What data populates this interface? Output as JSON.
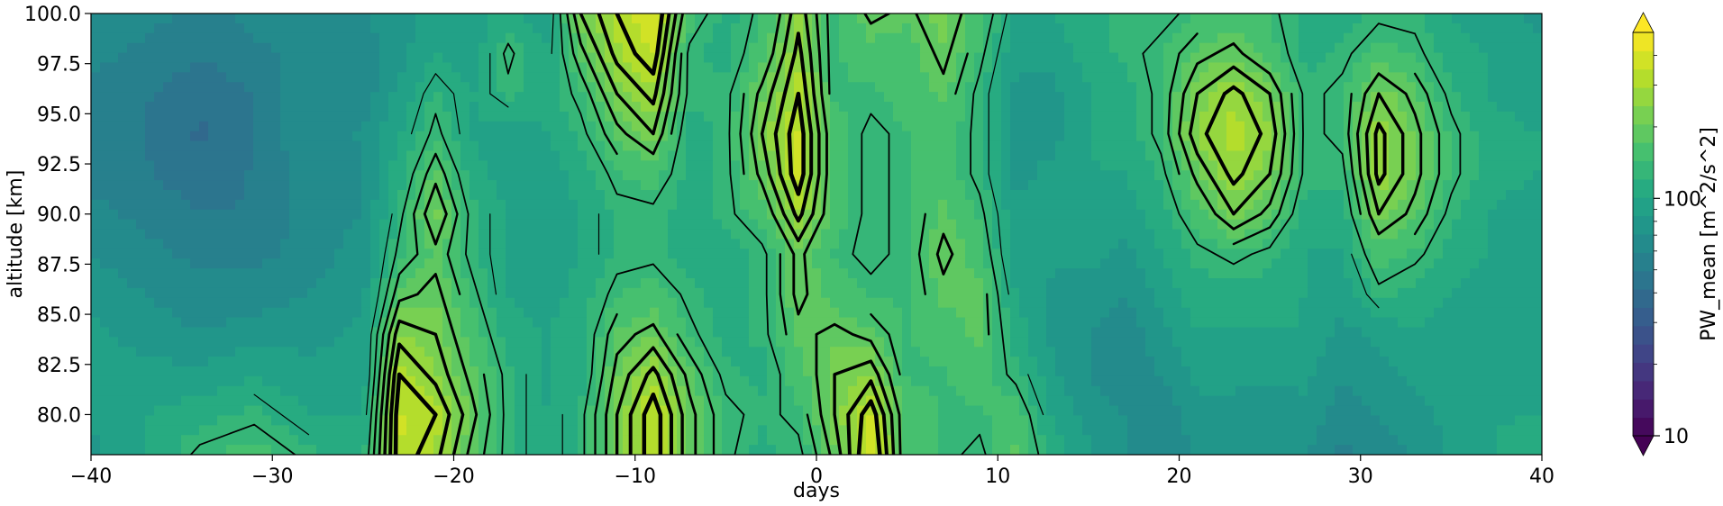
{
  "chart_data": {
    "type": "heatmap",
    "subtype": "filled-contour",
    "title": "",
    "xlabel": "days",
    "ylabel": "altitude [km]",
    "xlim": [
      -40,
      40
    ],
    "ylim": [
      78,
      100
    ],
    "x_ticks": [
      "-40",
      "-30",
      "-20",
      "-10",
      "0",
      "10",
      "20",
      "30",
      "40"
    ],
    "y_ticks": [
      "80.0",
      "82.5",
      "85.0",
      "87.5",
      "90.0",
      "92.5",
      "95.0",
      "97.5",
      "100.0"
    ],
    "colorbar": {
      "label": "PW_mean [m^2/s^2]",
      "scale": "log",
      "colormap": "viridis",
      "range": [
        10,
        500
      ],
      "ticks": [
        "10",
        "100"
      ],
      "extend": "both"
    },
    "contour_lines": "black, thicker for higher levels",
    "x": [
      -40,
      -37,
      -34,
      -31,
      -28,
      -25,
      -23,
      -21,
      -19,
      -17,
      -15,
      -13,
      -11,
      -9,
      -7,
      -5,
      -3,
      -1,
      1,
      3,
      5,
      7,
      9,
      11,
      13,
      15,
      17,
      19,
      21,
      23,
      25,
      27,
      29,
      31,
      33,
      35,
      37,
      40
    ],
    "y": [
      78,
      80,
      82,
      84,
      86,
      88,
      90,
      92,
      94,
      96,
      98,
      100
    ],
    "z": [
      [
        1.9,
        1.95,
        1.95,
        1.95,
        1.9,
        1.85,
        1.8,
        1.75,
        1.7,
        1.75,
        1.8,
        1.85
      ],
      [
        2.0,
        2.0,
        1.95,
        1.9,
        1.85,
        1.8,
        1.75,
        1.7,
        1.7,
        1.7,
        1.75,
        1.8
      ],
      [
        2.15,
        2.05,
        1.95,
        1.85,
        1.8,
        1.75,
        1.7,
        1.65,
        1.6,
        1.65,
        1.7,
        1.75
      ],
      [
        2.2,
        2.1,
        2.0,
        1.9,
        1.8,
        1.75,
        1.7,
        1.7,
        1.7,
        1.7,
        1.75,
        1.8
      ],
      [
        2.1,
        2.0,
        1.95,
        1.9,
        1.85,
        1.8,
        1.8,
        1.8,
        1.85,
        1.85,
        1.8,
        1.85
      ],
      [
        2.05,
        2.0,
        1.95,
        1.95,
        1.9,
        1.9,
        1.85,
        1.85,
        1.85,
        1.8,
        1.8,
        1.85
      ],
      [
        2.55,
        2.55,
        2.5,
        2.4,
        2.25,
        2.15,
        2.1,
        2.05,
        2.0,
        1.95,
        1.9,
        1.9
      ],
      [
        2.45,
        2.5,
        2.4,
        2.35,
        2.3,
        2.25,
        2.35,
        2.25,
        2.15,
        2.1,
        2.0,
        1.95
      ],
      [
        2.25,
        2.3,
        2.25,
        2.2,
        2.15,
        2.1,
        2.1,
        2.05,
        2.0,
        2.0,
        1.95,
        1.95
      ],
      [
        2.1,
        2.1,
        2.1,
        2.05,
        2.0,
        2.0,
        2.0,
        1.95,
        1.95,
        2.1,
        2.15,
        2.05
      ],
      [
        2.0,
        2.0,
        2.0,
        2.0,
        1.95,
        1.95,
        1.95,
        1.95,
        2.0,
        2.05,
        2.0,
        1.95
      ],
      [
        2.1,
        2.1,
        2.05,
        2.05,
        2.05,
        2.0,
        2.0,
        2.05,
        2.1,
        2.15,
        2.25,
        2.35
      ],
      [
        2.35,
        2.35,
        2.3,
        2.25,
        2.15,
        2.1,
        2.1,
        2.15,
        2.25,
        2.35,
        2.45,
        2.5
      ],
      [
        2.55,
        2.55,
        2.45,
        2.3,
        2.2,
        2.1,
        2.1,
        2.2,
        2.35,
        2.45,
        2.55,
        2.6
      ],
      [
        2.3,
        2.3,
        2.25,
        2.15,
        2.1,
        2.05,
        2.05,
        2.05,
        2.05,
        2.1,
        2.1,
        2.2
      ],
      [
        2.15,
        2.15,
        2.1,
        2.05,
        2.05,
        2.05,
        2.1,
        2.1,
        2.1,
        2.1,
        2.05,
        2.05
      ],
      [
        2.05,
        2.1,
        2.05,
        2.1,
        2.1,
        2.1,
        2.2,
        2.3,
        2.35,
        2.3,
        2.2,
        2.15
      ],
      [
        2.1,
        2.15,
        2.2,
        2.25,
        2.3,
        2.3,
        2.45,
        2.55,
        2.55,
        2.5,
        2.45,
        2.4
      ],
      [
        2.3,
        2.35,
        2.35,
        2.3,
        2.2,
        2.15,
        2.2,
        2.2,
        2.2,
        2.15,
        2.15,
        2.15
      ],
      [
        2.6,
        2.55,
        2.4,
        2.25,
        2.15,
        2.1,
        2.1,
        2.1,
        2.1,
        2.15,
        2.2,
        2.3
      ],
      [
        2.2,
        2.2,
        2.15,
        2.15,
        2.15,
        2.15,
        2.15,
        2.15,
        2.15,
        2.2,
        2.2,
        2.25
      ],
      [
        2.15,
        2.15,
        2.15,
        2.2,
        2.25,
        2.3,
        2.25,
        2.2,
        2.2,
        2.25,
        2.3,
        2.35
      ],
      [
        2.1,
        2.15,
        2.2,
        2.25,
        2.25,
        2.2,
        2.15,
        2.1,
        2.1,
        2.1,
        2.15,
        2.2
      ],
      [
        2.25,
        2.2,
        2.1,
        2.05,
        2.0,
        1.95,
        1.95,
        1.9,
        1.9,
        1.9,
        1.95,
        2.0
      ],
      [
        2.05,
        2.0,
        1.95,
        1.9,
        1.9,
        1.95,
        2.0,
        1.95,
        1.9,
        1.9,
        1.95,
        2.0
      ],
      [
        1.95,
        1.9,
        1.85,
        1.85,
        1.9,
        1.95,
        2.0,
        2.0,
        2.0,
        2.0,
        2.05,
        2.05
      ],
      [
        1.85,
        1.85,
        1.8,
        1.8,
        1.85,
        1.9,
        1.95,
        2.0,
        2.05,
        2.05,
        2.1,
        2.1
      ],
      [
        1.8,
        1.8,
        1.85,
        1.9,
        1.95,
        2.0,
        2.05,
        2.1,
        2.15,
        2.15,
        2.15,
        2.1
      ],
      [
        1.85,
        1.9,
        1.95,
        2.0,
        2.05,
        2.1,
        2.2,
        2.3,
        2.4,
        2.35,
        2.25,
        2.15
      ],
      [
        1.85,
        1.9,
        1.95,
        2.0,
        2.05,
        2.15,
        2.35,
        2.45,
        2.5,
        2.45,
        2.3,
        2.2
      ],
      [
        1.85,
        1.85,
        1.95,
        2.0,
        2.05,
        2.1,
        2.25,
        2.35,
        2.4,
        2.35,
        2.2,
        2.15
      ],
      [
        1.85,
        1.9,
        1.95,
        2.0,
        2.0,
        2.0,
        2.05,
        2.1,
        2.1,
        2.1,
        2.05,
        2.05
      ],
      [
        1.75,
        1.8,
        1.85,
        1.9,
        1.95,
        2.0,
        2.05,
        2.1,
        2.15,
        2.15,
        2.1,
        2.05
      ],
      [
        1.8,
        1.85,
        1.9,
        1.95,
        2.1,
        2.2,
        2.35,
        2.45,
        2.45,
        2.35,
        2.2,
        2.1
      ],
      [
        1.85,
        1.9,
        1.95,
        2.0,
        2.05,
        2.15,
        2.25,
        2.3,
        2.3,
        2.25,
        2.15,
        2.1
      ],
      [
        1.95,
        1.95,
        1.95,
        1.95,
        2.0,
        2.05,
        2.1,
        2.15,
        2.15,
        2.1,
        2.05,
        2.0
      ],
      [
        2.0,
        2.0,
        1.95,
        1.95,
        1.95,
        2.0,
        2.0,
        2.05,
        2.05,
        2.0,
        2.0,
        1.95
      ],
      [
        2.05,
        2.0,
        2.0,
        1.95,
        1.95,
        1.95,
        1.95,
        2.0,
        2.0,
        1.95,
        1.95,
        1.9
      ]
    ]
  }
}
